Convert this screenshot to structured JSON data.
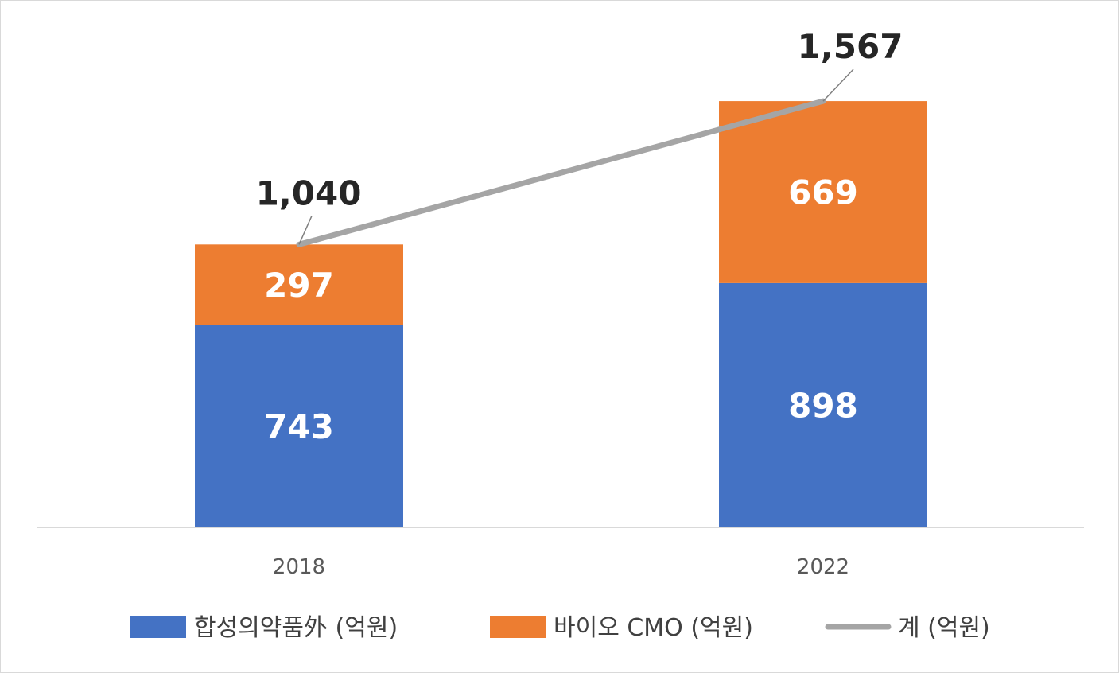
{
  "chart_data": {
    "type": "bar",
    "stacked": true,
    "categories": [
      "2018",
      "2022"
    ],
    "series": [
      {
        "name": "합성의약품外 (억원)",
        "values": [
          743,
          898
        ],
        "color": "#4472c4"
      },
      {
        "name": "바이오 CMO (억원)",
        "values": [
          297,
          669
        ],
        "color": "#ed7d31"
      }
    ],
    "total_series": {
      "name": "계 (억원)",
      "values": [
        1040,
        1567
      ],
      "labels": [
        "1,040",
        "1,567"
      ],
      "color": "#a5a5a5",
      "type": "line"
    },
    "ylim": [
      0,
      1800
    ],
    "grid": false,
    "legend_position": "bottom",
    "xlabel": "",
    "ylabel": "",
    "title": ""
  }
}
